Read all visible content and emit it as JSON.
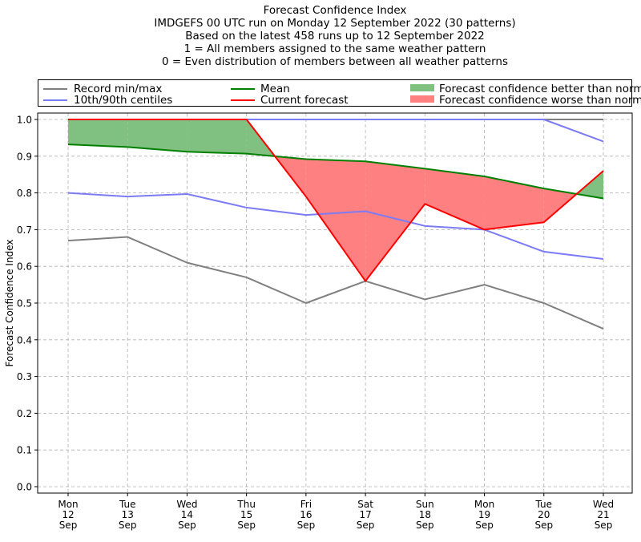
{
  "title": {
    "lines": [
      "Forecast Confidence Index",
      "IMDGEFS 00 UTC run on Monday 12 September 2022 (30 patterns)",
      "Based on the latest 458 runs up to 12 September 2022",
      "1 = All members assigned to the same weather pattern",
      "0 = Even distribution of members between all weather patterns"
    ]
  },
  "legend": {
    "record": "Record min/max",
    "centiles": "10th/90th centiles",
    "mean": "Mean",
    "current": "Current forecast",
    "better": "Forecast confidence better than normal",
    "worse": "Forecast confidence worse than normal"
  },
  "colors": {
    "record": "#808080",
    "centiles": "#7b7bf5",
    "mean": "#008000",
    "current": "#ff0000",
    "better": "#80c080",
    "worse": "#ff8080"
  },
  "chart_data": {
    "type": "line",
    "title": "Forecast Confidence Index",
    "ylabel": "Forecast Confidence Index",
    "xlabel": "",
    "ylim": [
      0,
      1.0
    ],
    "yticks": [
      "0.0",
      "0.1",
      "0.2",
      "0.3",
      "0.4",
      "0.5",
      "0.6",
      "0.7",
      "0.8",
      "0.9",
      "1.0"
    ],
    "grid": true,
    "legend_position": "top",
    "categories": [
      [
        "Mon",
        "12",
        "Sep"
      ],
      [
        "Tue",
        "13",
        "Sep"
      ],
      [
        "Wed",
        "14",
        "Sep"
      ],
      [
        "Thu",
        "15",
        "Sep"
      ],
      [
        "Fri",
        "16",
        "Sep"
      ],
      [
        "Sat",
        "17",
        "Sep"
      ],
      [
        "Sun",
        "18",
        "Sep"
      ],
      [
        "Mon",
        "19",
        "Sep"
      ],
      [
        "Tue",
        "20",
        "Sep"
      ],
      [
        "Wed",
        "21",
        "Sep"
      ]
    ],
    "series": [
      {
        "name": "Record min",
        "values": [
          0.67,
          0.68,
          0.61,
          0.57,
          0.5,
          0.56,
          0.51,
          0.55,
          0.5,
          0.43
        ]
      },
      {
        "name": "Record max",
        "values": [
          1.0,
          1.0,
          1.0,
          1.0,
          1.0,
          1.0,
          1.0,
          1.0,
          1.0,
          1.0
        ]
      },
      {
        "name": "10th centile",
        "values": [
          0.8,
          0.79,
          0.797,
          0.76,
          0.74,
          0.75,
          0.71,
          0.7,
          0.64,
          0.62
        ]
      },
      {
        "name": "90th centile",
        "values": [
          1.0,
          1.0,
          1.0,
          1.0,
          1.0,
          1.0,
          1.0,
          1.0,
          1.0,
          0.94
        ]
      },
      {
        "name": "Mean",
        "values": [
          0.932,
          0.925,
          0.912,
          0.907,
          0.892,
          0.886,
          0.866,
          0.845,
          0.812,
          0.785
        ]
      },
      {
        "name": "Current forecast",
        "values": [
          1.0,
          1.0,
          1.0,
          1.0,
          0.79,
          0.56,
          0.77,
          0.7,
          0.72,
          0.86
        ]
      }
    ]
  }
}
